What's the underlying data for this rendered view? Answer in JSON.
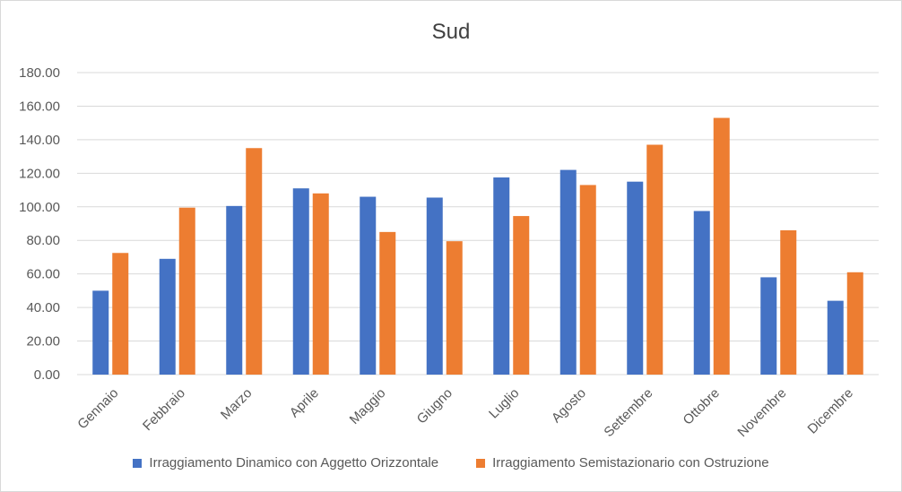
{
  "chart_data": {
    "type": "bar",
    "title": "Sud",
    "categories": [
      "Gennaio",
      "Febbraio",
      "Marzo",
      "Aprile",
      "Maggio",
      "Giugno",
      "Luglio",
      "Agosto",
      "Settembre",
      "Ottobre",
      "Novembre",
      "Dicembre"
    ],
    "series": [
      {
        "name": "Irraggiamento Dinamico con Aggetto Orizzontale",
        "color": "#4472c4",
        "values": [
          50,
          69,
          100.5,
          111,
          106,
          105.5,
          117.5,
          122,
          115,
          97.5,
          58,
          44
        ]
      },
      {
        "name": "Irraggiamento Semistazionario con Ostruzione",
        "color": "#ed7d31",
        "values": [
          72.5,
          99.5,
          135,
          108,
          85,
          79.5,
          94.5,
          113,
          137,
          153,
          86,
          61
        ]
      }
    ],
    "y_ticks": [
      "0.00",
      "20.00",
      "40.00",
      "60.00",
      "80.00",
      "100.00",
      "120.00",
      "140.00",
      "160.00",
      "180.00"
    ],
    "ylim": [
      0,
      180
    ],
    "grid": true,
    "legend_position": "bottom"
  }
}
